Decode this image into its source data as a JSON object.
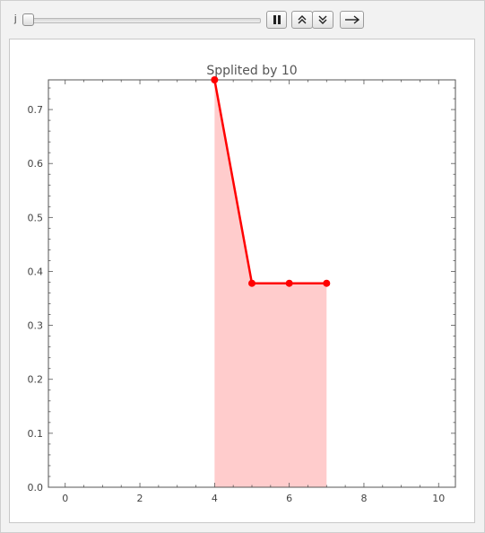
{
  "controls": {
    "slider_label": "j",
    "slider_value": 0,
    "pause_icon": "pause-icon",
    "faster_icon": "double-chevron-up-icon",
    "slower_icon": "double-chevron-down-icon",
    "direction_icon": "arrow-right-icon"
  },
  "chart_data": {
    "type": "line",
    "title": "Spplited by 10",
    "xlabel": "",
    "ylabel": "",
    "x": [
      4,
      5,
      6,
      7
    ],
    "series": [
      {
        "values": [
          0.755,
          0.378,
          0.378,
          0.378
        ],
        "color": "#ff0000",
        "fill": "#ffcccc"
      }
    ],
    "xlim": [
      -0.45,
      10.45
    ],
    "ylim": [
      0,
      0.755
    ],
    "xticks": [
      "0",
      "2",
      "4",
      "6",
      "8",
      "10"
    ],
    "yticks": [
      "0.0",
      "0.1",
      "0.2",
      "0.3",
      "0.4",
      "0.5",
      "0.6",
      "0.7"
    ],
    "grid": false,
    "legend": "none"
  }
}
